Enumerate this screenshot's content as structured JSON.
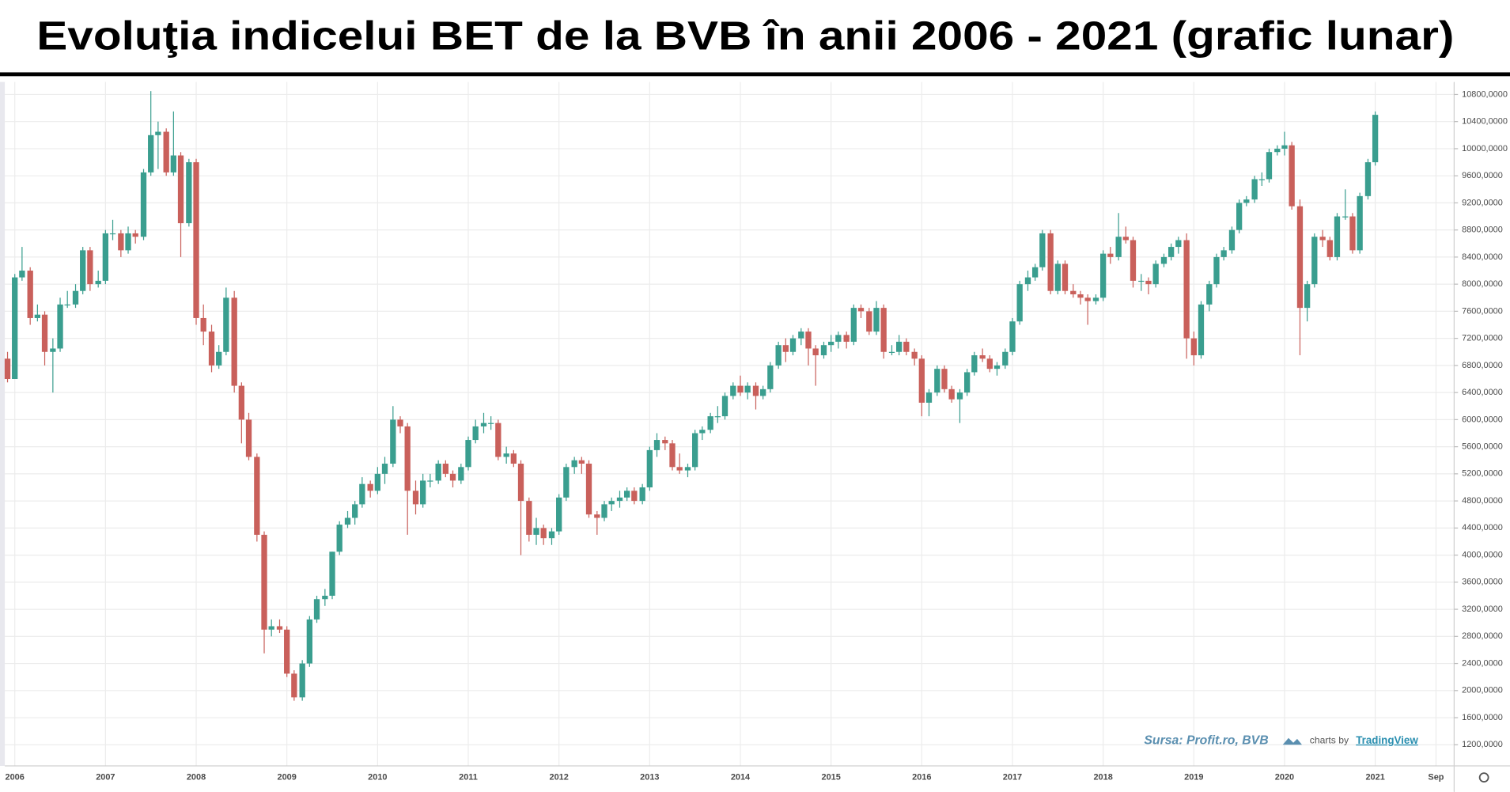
{
  "chart_data": {
    "type": "candlestick",
    "title": "Evoluţia indicelui BET de la BVB în anii 2006 - 2021 (grafic lunar)",
    "annotation": "Sursa: Profit.ro,  BVB",
    "credit": "charts by",
    "credit_link": "TradingView",
    "up_color": "#3a9e8f",
    "down_color": "#c9605b",
    "grid": true,
    "xlim": [
      2005.89,
      2021.87
    ],
    "xticks": [
      2006,
      2007,
      2008,
      2009,
      2010,
      2011,
      2012,
      2013,
      2014,
      2015,
      2016,
      2017,
      2018,
      2019,
      2020,
      2021,
      {
        "value": 2021.67,
        "label": "Sep"
      }
    ],
    "ylim": [
      888,
      10985
    ],
    "yticks": [
      {
        "value": 1200,
        "label": "1200,0000"
      },
      {
        "value": 1600,
        "label": "1600,0000"
      },
      {
        "value": 2000,
        "label": "2000,0000"
      },
      {
        "value": 2400,
        "label": "2400,0000"
      },
      {
        "value": 2800,
        "label": "2800,0000"
      },
      {
        "value": 3200,
        "label": "3200,0000"
      },
      {
        "value": 3600,
        "label": "3600,0000"
      },
      {
        "value": 4000,
        "label": "4000,0000"
      },
      {
        "value": 4400,
        "label": "4400,0000"
      },
      {
        "value": 4800,
        "label": "4800,0000"
      },
      {
        "value": 5200,
        "label": "5200,0000"
      },
      {
        "value": 5600,
        "label": "5600,0000"
      },
      {
        "value": 6000,
        "label": "6000,0000"
      },
      {
        "value": 6400,
        "label": "6400,0000"
      },
      {
        "value": 6800,
        "label": "6800,0000"
      },
      {
        "value": 7200,
        "label": "7200,0000"
      },
      {
        "value": 7600,
        "label": "7600,0000"
      },
      {
        "value": 8000,
        "label": "8000,0000"
      },
      {
        "value": 8400,
        "label": "8400,0000"
      },
      {
        "value": 8800,
        "label": "8800,0000"
      },
      {
        "value": 9200,
        "label": "9200,0000"
      },
      {
        "value": 9600,
        "label": "9600,0000"
      },
      {
        "value": 10000,
        "label": "10000,0000"
      },
      {
        "value": 10400,
        "label": "10400,0000"
      },
      {
        "value": 10800,
        "label": "10800,0000"
      }
    ],
    "candle_fields": [
      "x",
      "open",
      "high",
      "low",
      "close"
    ],
    "candles": [
      [
        2005.92,
        6900,
        7000,
        6550,
        6600
      ],
      [
        2006.0,
        6600,
        8150,
        6600,
        8100
      ],
      [
        2006.08,
        8100,
        8550,
        8050,
        8200
      ],
      [
        2006.17,
        8200,
        8250,
        7400,
        7500
      ],
      [
        2006.25,
        7500,
        7700,
        7450,
        7550
      ],
      [
        2006.33,
        7550,
        7600,
        6800,
        7000
      ],
      [
        2006.42,
        7000,
        7200,
        6400,
        7050
      ],
      [
        2006.5,
        7050,
        7800,
        7000,
        7700
      ],
      [
        2006.58,
        7700,
        7900,
        7650,
        7700
      ],
      [
        2006.67,
        7700,
        8000,
        7650,
        7900
      ],
      [
        2006.75,
        7900,
        8550,
        7850,
        8500
      ],
      [
        2006.83,
        8500,
        8550,
        7900,
        8000
      ],
      [
        2006.92,
        8000,
        8200,
        7950,
        8050
      ],
      [
        2007.0,
        8050,
        8800,
        8000,
        8750
      ],
      [
        2007.08,
        8750,
        8950,
        8650,
        8750
      ],
      [
        2007.17,
        8750,
        8800,
        8400,
        8500
      ],
      [
        2007.25,
        8500,
        8850,
        8450,
        8750
      ],
      [
        2007.33,
        8750,
        8800,
        8600,
        8700
      ],
      [
        2007.42,
        8700,
        9700,
        8650,
        9650
      ],
      [
        2007.5,
        9650,
        10850,
        9600,
        10200
      ],
      [
        2007.58,
        10200,
        10400,
        9700,
        10250
      ],
      [
        2007.67,
        10250,
        10300,
        9600,
        9650
      ],
      [
        2007.75,
        9650,
        10550,
        9600,
        9900
      ],
      [
        2007.83,
        9900,
        9950,
        8400,
        8900
      ],
      [
        2007.92,
        8900,
        9850,
        8850,
        9800
      ],
      [
        2008.0,
        9800,
        9850,
        7400,
        7500
      ],
      [
        2008.08,
        7500,
        7700,
        7100,
        7300
      ],
      [
        2008.17,
        7300,
        7400,
        6700,
        6800
      ],
      [
        2008.25,
        6800,
        7100,
        6750,
        7000
      ],
      [
        2008.33,
        7000,
        7950,
        6950,
        7800
      ],
      [
        2008.42,
        7800,
        7900,
        6400,
        6500
      ],
      [
        2008.5,
        6500,
        6550,
        5650,
        6000
      ],
      [
        2008.58,
        6000,
        6100,
        5400,
        5450
      ],
      [
        2008.67,
        5450,
        5500,
        4200,
        4300
      ],
      [
        2008.75,
        4300,
        4350,
        2550,
        2900
      ],
      [
        2008.83,
        2900,
        3050,
        2800,
        2950
      ],
      [
        2008.92,
        2950,
        3050,
        2850,
        2900
      ],
      [
        2009.0,
        2900,
        2950,
        2200,
        2250
      ],
      [
        2009.08,
        2250,
        2300,
        1850,
        1900
      ],
      [
        2009.17,
        1900,
        2450,
        1850,
        2400
      ],
      [
        2009.25,
        2400,
        3100,
        2350,
        3050
      ],
      [
        2009.33,
        3050,
        3400,
        3000,
        3350
      ],
      [
        2009.42,
        3350,
        3500,
        3250,
        3400
      ],
      [
        2009.5,
        3400,
        4050,
        3350,
        4050
      ],
      [
        2009.58,
        4050,
        4500,
        4000,
        4450
      ],
      [
        2009.67,
        4450,
        4650,
        4400,
        4550
      ],
      [
        2009.75,
        4550,
        4800,
        4450,
        4750
      ],
      [
        2009.83,
        4750,
        5150,
        4700,
        5050
      ],
      [
        2009.92,
        5050,
        5100,
        4850,
        4950
      ],
      [
        2010.0,
        4950,
        5300,
        4900,
        5200
      ],
      [
        2010.08,
        5200,
        5450,
        5050,
        5350
      ],
      [
        2010.17,
        5350,
        6200,
        5300,
        6000
      ],
      [
        2010.25,
        6000,
        6050,
        5800,
        5900
      ],
      [
        2010.33,
        5900,
        5950,
        4300,
        4950
      ],
      [
        2010.42,
        4950,
        5100,
        4600,
        4750
      ],
      [
        2010.5,
        4750,
        5200,
        4700,
        5100
      ],
      [
        2010.58,
        5100,
        5200,
        5000,
        5100
      ],
      [
        2010.67,
        5100,
        5400,
        5050,
        5350
      ],
      [
        2010.75,
        5350,
        5400,
        5150,
        5200
      ],
      [
        2010.83,
        5200,
        5250,
        5000,
        5100
      ],
      [
        2010.92,
        5100,
        5350,
        5050,
        5300
      ],
      [
        2011.0,
        5300,
        5750,
        5250,
        5700
      ],
      [
        2011.08,
        5700,
        6000,
        5650,
        5900
      ],
      [
        2011.17,
        5900,
        6100,
        5800,
        5950
      ],
      [
        2011.25,
        5950,
        6050,
        5850,
        5950
      ],
      [
        2011.33,
        5950,
        6000,
        5400,
        5450
      ],
      [
        2011.42,
        5450,
        5600,
        5350,
        5500
      ],
      [
        2011.5,
        5500,
        5550,
        5300,
        5350
      ],
      [
        2011.58,
        5350,
        5400,
        4000,
        4800
      ],
      [
        2011.67,
        4800,
        4850,
        4200,
        4300
      ],
      [
        2011.75,
        4300,
        4550,
        4150,
        4400
      ],
      [
        2011.83,
        4400,
        4450,
        4150,
        4250
      ],
      [
        2011.92,
        4250,
        4400,
        4150,
        4350
      ],
      [
        2012.0,
        4350,
        4900,
        4300,
        4850
      ],
      [
        2012.08,
        4850,
        5350,
        4800,
        5300
      ],
      [
        2012.17,
        5300,
        5450,
        5200,
        5400
      ],
      [
        2012.25,
        5400,
        5450,
        5200,
        5350
      ],
      [
        2012.33,
        5350,
        5400,
        4550,
        4600
      ],
      [
        2012.42,
        4600,
        4650,
        4300,
        4550
      ],
      [
        2012.5,
        4550,
        4800,
        4500,
        4750
      ],
      [
        2012.58,
        4750,
        4850,
        4650,
        4800
      ],
      [
        2012.67,
        4800,
        4950,
        4700,
        4850
      ],
      [
        2012.75,
        4850,
        5000,
        4800,
        4950
      ],
      [
        2012.83,
        4950,
        5000,
        4750,
        4800
      ],
      [
        2012.92,
        4800,
        5050,
        4750,
        5000
      ],
      [
        2013.0,
        5000,
        5600,
        4950,
        5550
      ],
      [
        2013.08,
        5550,
        5800,
        5450,
        5700
      ],
      [
        2013.17,
        5700,
        5750,
        5550,
        5650
      ],
      [
        2013.25,
        5650,
        5700,
        5250,
        5300
      ],
      [
        2013.33,
        5300,
        5500,
        5200,
        5250
      ],
      [
        2013.42,
        5250,
        5350,
        5150,
        5300
      ],
      [
        2013.5,
        5300,
        5850,
        5250,
        5800
      ],
      [
        2013.58,
        5800,
        5900,
        5700,
        5850
      ],
      [
        2013.67,
        5850,
        6100,
        5800,
        6050
      ],
      [
        2013.75,
        6050,
        6200,
        5950,
        6050
      ],
      [
        2013.83,
        6050,
        6400,
        6000,
        6350
      ],
      [
        2013.92,
        6350,
        6550,
        6300,
        6500
      ],
      [
        2014.0,
        6500,
        6650,
        6350,
        6400
      ],
      [
        2014.08,
        6400,
        6550,
        6300,
        6500
      ],
      [
        2014.17,
        6500,
        6550,
        6150,
        6350
      ],
      [
        2014.25,
        6350,
        6500,
        6300,
        6450
      ],
      [
        2014.33,
        6450,
        6850,
        6400,
        6800
      ],
      [
        2014.42,
        6800,
        7150,
        6750,
        7100
      ],
      [
        2014.5,
        7100,
        7200,
        6850,
        7000
      ],
      [
        2014.58,
        7000,
        7250,
        6950,
        7200
      ],
      [
        2014.67,
        7200,
        7350,
        7100,
        7300
      ],
      [
        2014.75,
        7300,
        7350,
        6800,
        7050
      ],
      [
        2014.83,
        7050,
        7100,
        6500,
        6950
      ],
      [
        2014.92,
        6950,
        7150,
        6900,
        7100
      ],
      [
        2015.0,
        7100,
        7250,
        7000,
        7150
      ],
      [
        2015.08,
        7150,
        7300,
        7050,
        7250
      ],
      [
        2015.17,
        7250,
        7300,
        7050,
        7150
      ],
      [
        2015.25,
        7150,
        7700,
        7100,
        7650
      ],
      [
        2015.33,
        7650,
        7700,
        7500,
        7600
      ],
      [
        2015.42,
        7600,
        7650,
        7250,
        7300
      ],
      [
        2015.5,
        7300,
        7750,
        7250,
        7650
      ],
      [
        2015.58,
        7650,
        7700,
        6900,
        7000
      ],
      [
        2015.67,
        7000,
        7100,
        6950,
        7000
      ],
      [
        2015.75,
        7000,
        7250,
        6950,
        7150
      ],
      [
        2015.83,
        7150,
        7200,
        6950,
        7000
      ],
      [
        2015.92,
        7000,
        7050,
        6800,
        6900
      ],
      [
        2016.0,
        6900,
        6950,
        6050,
        6250
      ],
      [
        2016.08,
        6250,
        6450,
        6050,
        6400
      ],
      [
        2016.17,
        6400,
        6800,
        6350,
        6750
      ],
      [
        2016.25,
        6750,
        6800,
        6400,
        6450
      ],
      [
        2016.33,
        6450,
        6500,
        6250,
        6300
      ],
      [
        2016.42,
        6300,
        6450,
        5950,
        6400
      ],
      [
        2016.5,
        6400,
        6750,
        6350,
        6700
      ],
      [
        2016.58,
        6700,
        7000,
        6650,
        6950
      ],
      [
        2016.67,
        6950,
        7050,
        6850,
        6900
      ],
      [
        2016.75,
        6900,
        6950,
        6700,
        6750
      ],
      [
        2016.83,
        6750,
        6850,
        6650,
        6800
      ],
      [
        2016.92,
        6800,
        7050,
        6750,
        7000
      ],
      [
        2017.0,
        7000,
        7500,
        6950,
        7450
      ],
      [
        2017.08,
        7450,
        8050,
        7400,
        8000
      ],
      [
        2017.17,
        8000,
        8200,
        7900,
        8100
      ],
      [
        2017.25,
        8100,
        8300,
        8050,
        8250
      ],
      [
        2017.33,
        8250,
        8800,
        8200,
        8750
      ],
      [
        2017.42,
        8750,
        8800,
        7850,
        7900
      ],
      [
        2017.5,
        7900,
        8350,
        7850,
        8300
      ],
      [
        2017.58,
        8300,
        8350,
        7850,
        7900
      ],
      [
        2017.67,
        7900,
        8000,
        7800,
        7850
      ],
      [
        2017.75,
        7850,
        7900,
        7700,
        7800
      ],
      [
        2017.83,
        7800,
        7850,
        7400,
        7750
      ],
      [
        2017.92,
        7750,
        7850,
        7700,
        7800
      ],
      [
        2018.0,
        7800,
        8500,
        7750,
        8450
      ],
      [
        2018.08,
        8450,
        8550,
        8300,
        8400
      ],
      [
        2018.17,
        8400,
        9050,
        8350,
        8700
      ],
      [
        2018.25,
        8700,
        8850,
        8600,
        8650
      ],
      [
        2018.33,
        8650,
        8700,
        7950,
        8050
      ],
      [
        2018.42,
        8050,
        8150,
        7900,
        8050
      ],
      [
        2018.5,
        8050,
        8100,
        7850,
        8000
      ],
      [
        2018.58,
        8000,
        8350,
        7950,
        8300
      ],
      [
        2018.67,
        8300,
        8450,
        8250,
        8400
      ],
      [
        2018.75,
        8400,
        8600,
        8350,
        8550
      ],
      [
        2018.83,
        8550,
        8700,
        8450,
        8650
      ],
      [
        2018.92,
        8650,
        8750,
        6900,
        7200
      ],
      [
        2019.0,
        7200,
        7300,
        6800,
        6950
      ],
      [
        2019.08,
        6950,
        7750,
        6900,
        7700
      ],
      [
        2019.17,
        7700,
        8050,
        7600,
        8000
      ],
      [
        2019.25,
        8000,
        8450,
        7950,
        8400
      ],
      [
        2019.33,
        8400,
        8550,
        8350,
        8500
      ],
      [
        2019.42,
        8500,
        8850,
        8450,
        8800
      ],
      [
        2019.5,
        8800,
        9250,
        8750,
        9200
      ],
      [
        2019.58,
        9200,
        9300,
        9150,
        9250
      ],
      [
        2019.67,
        9250,
        9600,
        9200,
        9550
      ],
      [
        2019.75,
        9550,
        9650,
        9450,
        9550
      ],
      [
        2019.83,
        9550,
        10000,
        9500,
        9950
      ],
      [
        2019.92,
        9950,
        10050,
        9900,
        10000
      ],
      [
        2020.0,
        10000,
        10250,
        9900,
        10050
      ],
      [
        2020.08,
        10050,
        10100,
        9100,
        9150
      ],
      [
        2020.17,
        9150,
        9250,
        6950,
        7650
      ],
      [
        2020.25,
        7650,
        8050,
        7450,
        8000
      ],
      [
        2020.33,
        8000,
        8750,
        7950,
        8700
      ],
      [
        2020.42,
        8700,
        8800,
        8550,
        8650
      ],
      [
        2020.5,
        8650,
        8700,
        8350,
        8400
      ],
      [
        2020.58,
        8400,
        9050,
        8350,
        9000
      ],
      [
        2020.67,
        9000,
        9400,
        8950,
        9000
      ],
      [
        2020.75,
        9000,
        9050,
        8450,
        8500
      ],
      [
        2020.83,
        8500,
        9350,
        8450,
        9300
      ],
      [
        2020.92,
        9300,
        9850,
        9250,
        9800
      ],
      [
        2021.0,
        9800,
        10550,
        9750,
        10500
      ]
    ]
  }
}
